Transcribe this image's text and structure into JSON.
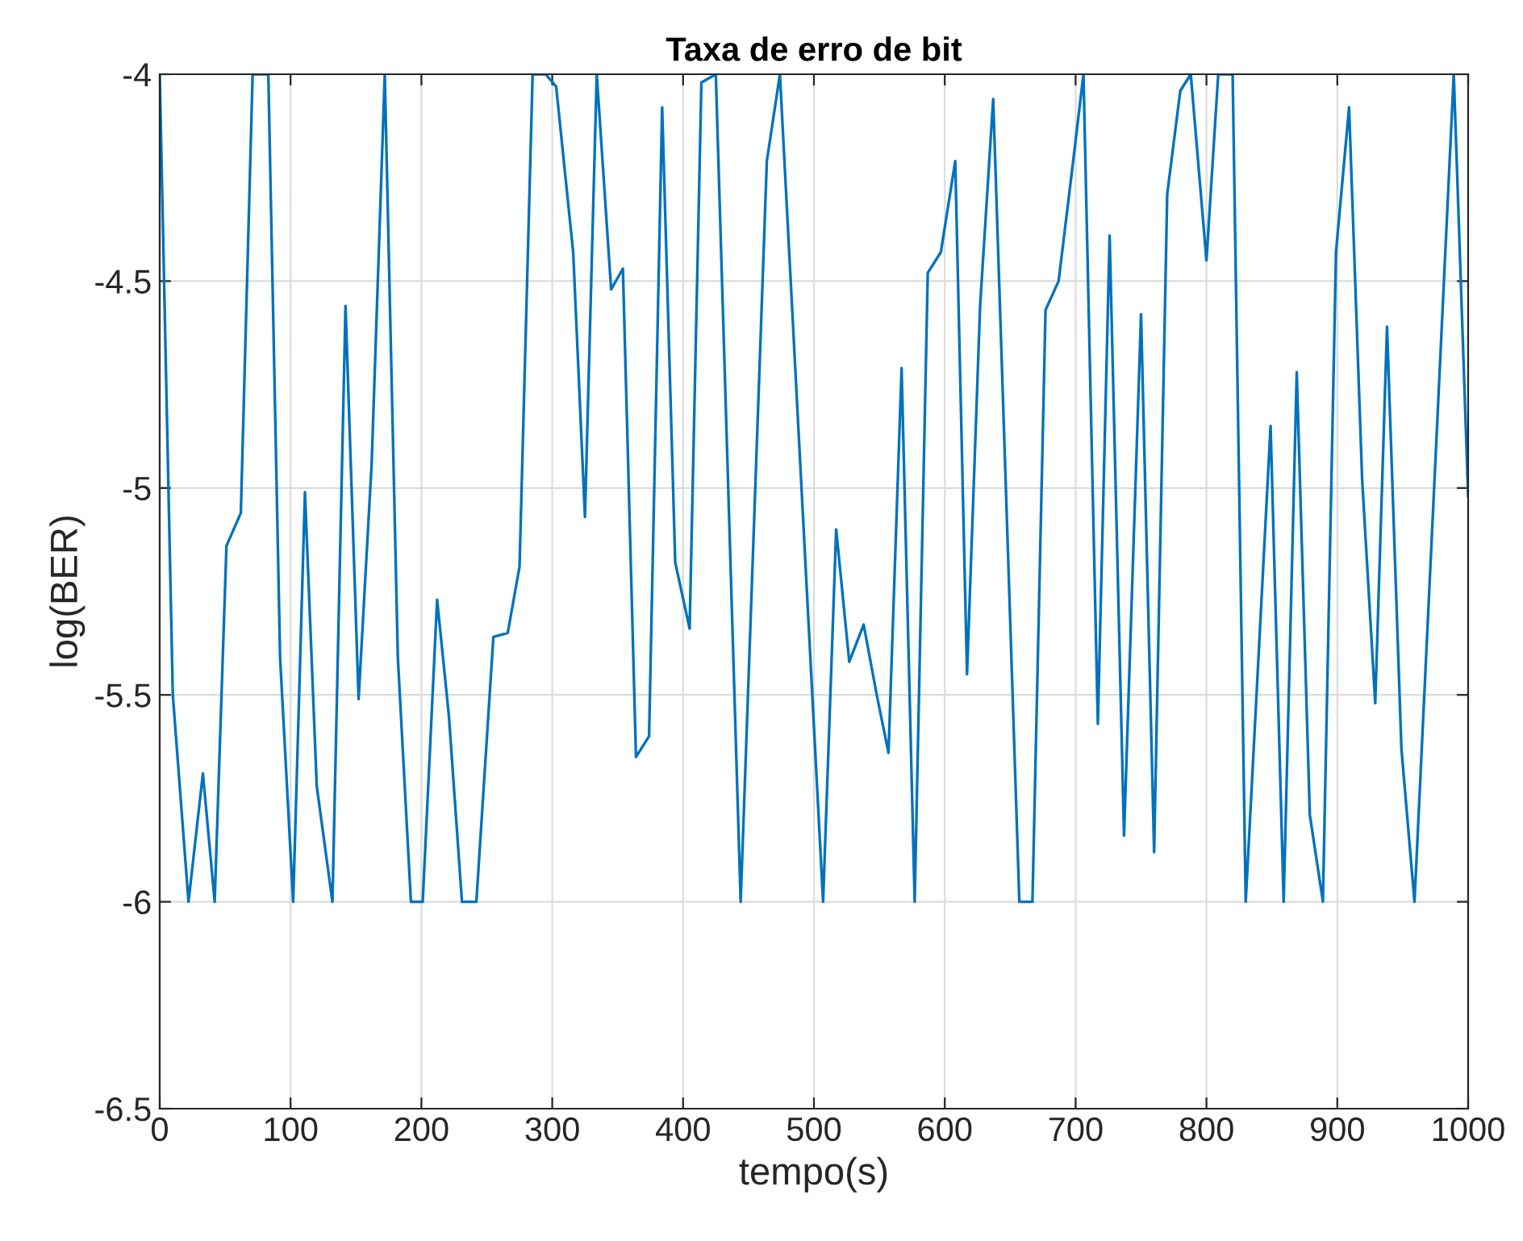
{
  "chart_data": {
    "type": "line",
    "title": "Taxa de erro de bit",
    "xlabel": "tempo(s)",
    "ylabel": "log(BER)",
    "series": [
      {
        "color": "#0072bd",
        "x": [
          0,
          10,
          22,
          33,
          42,
          51,
          62,
          71,
          83,
          92,
          102,
          111,
          120,
          132,
          142,
          152,
          162,
          172,
          182,
          192,
          201,
          212,
          221,
          231,
          242,
          255,
          266,
          275,
          285,
          295,
          303,
          316,
          325,
          334,
          345,
          354,
          364,
          374,
          384,
          394,
          405,
          414,
          425,
          444,
          464,
          474,
          507,
          517,
          527,
          538,
          548,
          557,
          567,
          577,
          587,
          597,
          608,
          617,
          627,
          637,
          657,
          667,
          677,
          687,
          697,
          706,
          717,
          726,
          737,
          750,
          760,
          770,
          780,
          788,
          800,
          809,
          820,
          830,
          849,
          859,
          869,
          879,
          889,
          899,
          909,
          919,
          929,
          938,
          949,
          959,
          989,
          1000
        ],
        "values": [
          -4,
          -5.5,
          -6,
          -5.69,
          -6,
          -5.14,
          -5.06,
          -4,
          -4,
          -5.41,
          -6,
          -5.01,
          -5.72,
          -6,
          -4.56,
          -5.51,
          -4.94,
          -4,
          -5.41,
          -6,
          -6,
          -5.27,
          -5.55,
          -6,
          -6,
          -5.36,
          -5.35,
          -5.19,
          -4,
          -4,
          -4.03,
          -4.43,
          -5.07,
          -4,
          -4.52,
          -4.47,
          -5.65,
          -5.6,
          -4.08,
          -5.18,
          -5.34,
          -4.02,
          -4,
          -6,
          -4.21,
          -4,
          -6,
          -5.1,
          -5.42,
          -5.33,
          -5.5,
          -5.64,
          -4.71,
          -6,
          -4.48,
          -4.43,
          -4.21,
          -5.45,
          -4.56,
          -4.06,
          -6,
          -6,
          -4.57,
          -4.5,
          -4.24,
          -4,
          -5.57,
          -4.39,
          -5.84,
          -4.58,
          -5.88,
          -4.29,
          -4.04,
          -4,
          -4.45,
          -4,
          -4,
          -6,
          -4.85,
          -6,
          -4.72,
          -5.79,
          -6,
          -4.43,
          -4.08,
          -4.98,
          -5.52,
          -4.61,
          -5.63,
          -6,
          -4,
          -5.02
        ]
      }
    ],
    "xlim": [
      0,
      1000
    ],
    "xticks": [
      0,
      100,
      200,
      300,
      400,
      500,
      600,
      700,
      800,
      900,
      1000
    ],
    "ylim": [
      -6.5,
      -4
    ],
    "yticks": [
      -6.5,
      -6,
      -5.5,
      -5,
      -4.5,
      -4
    ],
    "grid": true
  }
}
